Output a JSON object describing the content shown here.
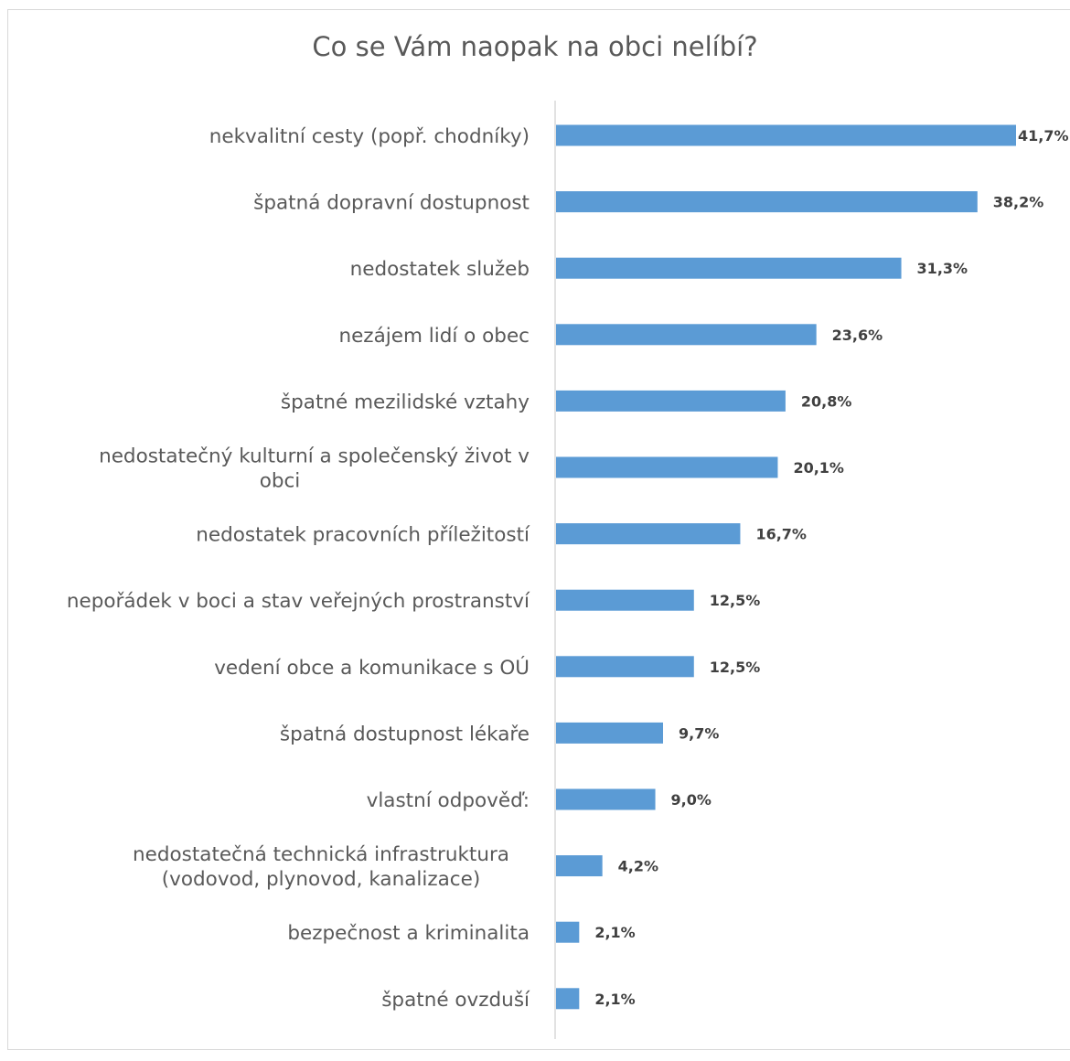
{
  "chart_data": {
    "type": "bar",
    "orientation": "horizontal",
    "title": "Co se Vám naopak na obci nelíbí?",
    "xlabel": "",
    "ylabel": "",
    "xlim": [
      0,
      42
    ],
    "grid": false,
    "legend": "none",
    "bar_color": "#5b9bd5",
    "categories": [
      [
        "nekvalitní cesty (popř. chodníky)"
      ],
      [
        "špatná dopravní dostupnost"
      ],
      [
        "nedostatek služeb"
      ],
      [
        "nezájem lidí o obec"
      ],
      [
        "špatné mezilidské vztahy"
      ],
      [
        "nedostatečný kulturní a společenský život v",
        "obci"
      ],
      [
        "nedostatek pracovních příležitostí"
      ],
      [
        "nepořádek v boci a stav veřejných prostranství"
      ],
      [
        "vedení obce a komunikace s OÚ"
      ],
      [
        "špatná dostupnost lékaře"
      ],
      [
        "vlastní odpověď:"
      ],
      [
        "nedostatečná technická infrastruktura",
        "(vodovod, plynovod, kanalizace)"
      ],
      [
        "bezpečnost a kriminalita"
      ],
      [
        "špatné ovzduší"
      ]
    ],
    "values": [
      41.7,
      38.2,
      31.3,
      23.6,
      20.8,
      20.1,
      16.7,
      12.5,
      12.5,
      9.7,
      9.0,
      4.2,
      2.1,
      2.1
    ],
    "data_labels": [
      "41,7%",
      "38,2%",
      "31,3%",
      "23,6%",
      "20,8%",
      "20,1%",
      "16,7%",
      "12,5%",
      "12,5%",
      "9,7%",
      "9,0%",
      "4,2%",
      "2,1%",
      "2,1%"
    ]
  }
}
